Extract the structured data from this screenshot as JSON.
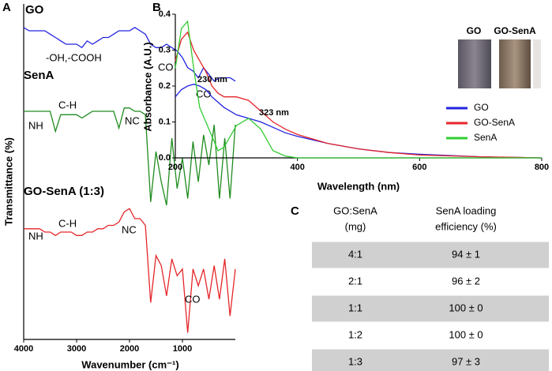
{
  "chart_data": [
    {
      "type": "line",
      "label": "A",
      "xlabel": "Wavenumber (cm⁻¹)",
      "ylabel": "Transmittance (%)",
      "xlim": [
        4000,
        0
      ],
      "ylim": [
        0,
        100
      ],
      "xticks": [
        4000,
        3000,
        2000,
        1000
      ],
      "grid": false,
      "x": [
        4000,
        3900,
        3800,
        3700,
        3600,
        3500,
        3400,
        3300,
        3200,
        3100,
        3000,
        2900,
        2800,
        2700,
        2600,
        2500,
        2400,
        2300,
        2200,
        2100,
        2000,
        1900,
        1800,
        1700,
        1600,
        1500,
        1400,
        1300,
        1200,
        1100,
        1000,
        900,
        800,
        700,
        600,
        500,
        400,
        300,
        200,
        100,
        0
      ],
      "series": [
        {
          "name": "GO",
          "color": "#2323e0",
          "values": [
            93,
            92,
            92,
            92,
            92,
            91,
            90,
            89,
            88,
            88,
            88,
            87,
            89,
            88,
            89,
            90,
            90,
            91,
            92,
            92,
            92,
            93,
            92,
            91,
            88,
            87,
            87,
            88,
            87,
            86,
            84,
            81,
            80,
            78,
            81,
            79,
            77,
            78,
            78,
            78,
            77
          ]
        },
        {
          "name": "SenA",
          "color": "#1f8c1f",
          "values": [
            68,
            68,
            68,
            68,
            68,
            68,
            62,
            67,
            67,
            67,
            67,
            66,
            67,
            68,
            68,
            68,
            68,
            68,
            63,
            69,
            69,
            68,
            68,
            67,
            41,
            56,
            47,
            40,
            60,
            45,
            54,
            42,
            59,
            47,
            61,
            52,
            64,
            42,
            60,
            42,
            64
          ]
        },
        {
          "name": "GO-SenA (1:3)",
          "color": "#e5262a",
          "values": [
            33,
            33,
            33,
            33,
            32,
            32,
            31,
            32,
            32,
            32,
            31,
            31,
            32,
            32,
            33,
            33,
            34,
            34,
            35,
            38,
            39,
            36,
            36,
            34,
            11,
            25,
            22,
            13,
            24,
            19,
            21,
            2,
            21,
            16,
            21,
            12,
            22,
            12,
            24,
            7,
            21
          ]
        }
      ],
      "annotations": [
        "-OH,-COOH",
        "CO",
        "CO",
        "NH",
        "C-H",
        "NC",
        "NH",
        "C-H",
        "NC",
        "CO"
      ]
    },
    {
      "type": "line",
      "label": "B",
      "xlabel": "Wavelength (nm)",
      "ylabel": "Absorbance (A.U.)",
      "xlim": [
        200,
        800
      ],
      "ylim": [
        0,
        0.4
      ],
      "xticks": [
        200,
        400,
        600,
        800
      ],
      "yticks": [
        {
          "value": 0,
          "label": "0.0"
        },
        0.1,
        0.2,
        0.3,
        0.4
      ],
      "grid": false,
      "legend": "right",
      "x": [
        200,
        210,
        220,
        230,
        240,
        250,
        260,
        270,
        280,
        290,
        300,
        320,
        340,
        360,
        380,
        400,
        450,
        500,
        550,
        600,
        700,
        800
      ],
      "series": [
        {
          "name": "GO",
          "color": "#2323e0",
          "values": [
            0.17,
            0.19,
            0.2,
            0.205,
            0.2,
            0.19,
            0.17,
            0.155,
            0.14,
            0.13,
            0.12,
            0.11,
            0.1,
            0.085,
            0.07,
            0.06,
            0.04,
            0.025,
            0.015,
            0.01,
            0.003,
            0
          ]
        },
        {
          "name": "GO-SenA",
          "color": "#e5262a",
          "values": [
            0.27,
            0.33,
            0.35,
            0.3,
            0.27,
            0.24,
            0.2,
            0.18,
            0.17,
            0.17,
            0.17,
            0.16,
            0.13,
            0.1,
            0.08,
            0.065,
            0.04,
            0.025,
            0.015,
            0.008,
            0.003,
            0
          ]
        },
        {
          "name": "SenA",
          "color": "#33cc33",
          "values": [
            0.25,
            0.36,
            0.38,
            0.25,
            0.14,
            0.1,
            0.06,
            0.02,
            0.03,
            0.06,
            0.09,
            0.11,
            0.08,
            0.02,
            0.005,
            0,
            0,
            0,
            0,
            0,
            0,
            0
          ]
        }
      ],
      "annotations": [
        "230 nm",
        "323 nm"
      ],
      "inset_labels": [
        "GO",
        "GO-SenA"
      ]
    }
  ],
  "table": {
    "label": "C",
    "header": [
      [
        "GO:SenA",
        "(mg)"
      ],
      [
        "SenA loading",
        "efficiency  (%)"
      ]
    ],
    "rows": [
      [
        "4:1",
        "94 ± 1"
      ],
      [
        "2:1",
        "96 ± 2"
      ],
      [
        "1:1",
        "100 ± 0"
      ],
      [
        "1:2",
        "100 ± 0"
      ],
      [
        "1:3",
        "97 ± 3"
      ]
    ]
  }
}
